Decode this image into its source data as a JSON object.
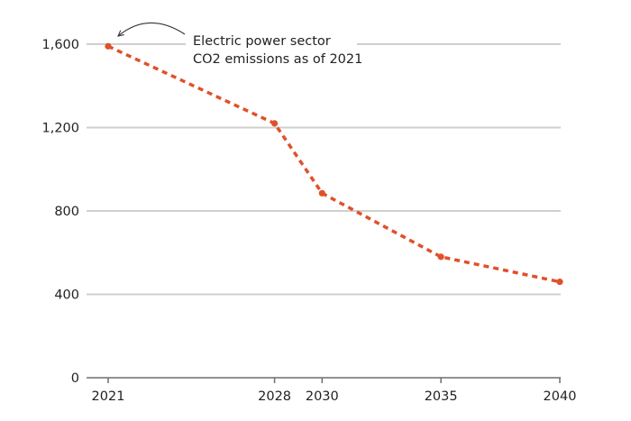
{
  "chart_data": {
    "type": "line",
    "title": "",
    "xlabel": "",
    "ylabel": "",
    "x": [
      2021,
      2028,
      2030,
      2035,
      2040
    ],
    "x_tick_labels": [
      "2021",
      "2028",
      "2030",
      "2035",
      "2040"
    ],
    "xlim": [
      2021,
      2040
    ],
    "ylim": [
      0,
      1600
    ],
    "y_ticks": [
      0,
      400,
      800,
      1200,
      1600
    ],
    "y_tick_labels": [
      "0",
      "400",
      "800",
      "1,200",
      "1,600"
    ],
    "grid": true,
    "series": [
      {
        "values": [
          1590,
          1220,
          885,
          580,
          460
        ],
        "color": "#e0502a",
        "style": "dotted"
      }
    ],
    "annotations": [
      {
        "lines": [
          "Electric power sector",
          "CO2 emissions as of 2021"
        ],
        "points_to": {
          "x": 2021,
          "y": 1590
        }
      }
    ]
  }
}
